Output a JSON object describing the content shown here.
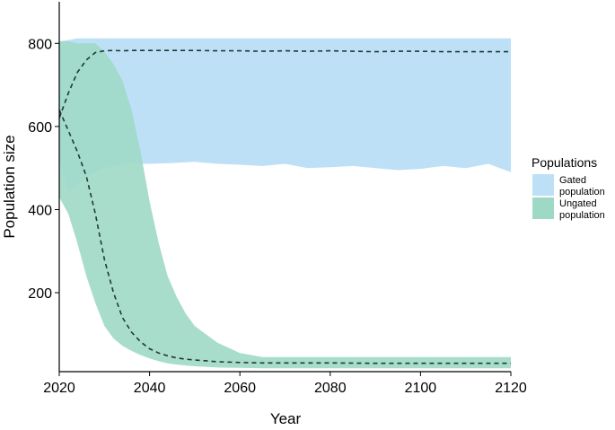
{
  "chart_data": {
    "type": "area",
    "title": "",
    "xlabel": "Year",
    "ylabel": "Population size",
    "xlim": [
      2020,
      2120
    ],
    "ylim": [
      10,
      900
    ],
    "x_ticks": [
      2020,
      2040,
      2060,
      2080,
      2100,
      2120
    ],
    "y_ticks": [
      200,
      400,
      600,
      800
    ],
    "grid": false,
    "legend": {
      "title": "Populations",
      "position": "right",
      "entries": [
        {
          "label_line1": "Gated",
          "label_line2": "population",
          "color": "#BDE0F6"
        },
        {
          "label_line1": "Ungated",
          "label_line2": "population",
          "color": "#9ED9C6"
        }
      ]
    },
    "series": [
      {
        "name": "Gated population",
        "color": "#BDE0F6",
        "x": [
          2020,
          2022,
          2024,
          2026,
          2028,
          2030,
          2032,
          2034,
          2036,
          2038,
          2040,
          2045,
          2050,
          2055,
          2060,
          2065,
          2070,
          2075,
          2080,
          2085,
          2090,
          2095,
          2100,
          2105,
          2110,
          2115,
          2120
        ],
        "lower": [
          520,
          440,
          460,
          480,
          490,
          500,
          505,
          510,
          512,
          510,
          510,
          512,
          515,
          510,
          508,
          505,
          510,
          500,
          502,
          505,
          500,
          495,
          498,
          505,
          500,
          510,
          490
        ],
        "upper": [
          805,
          808,
          812,
          812,
          812,
          812,
          812,
          812,
          812,
          812,
          812,
          812,
          812,
          812,
          812,
          812,
          812,
          812,
          812,
          812,
          812,
          812,
          812,
          812,
          812,
          812,
          812
        ],
        "mean": [
          620,
          680,
          730,
          760,
          778,
          782,
          783,
          782,
          783,
          783,
          783,
          783,
          783,
          782,
          782,
          781,
          782,
          781,
          782,
          781,
          780,
          781,
          781,
          780,
          780,
          780,
          780
        ]
      },
      {
        "name": "Ungated population",
        "color": "#9ED9C6",
        "x": [
          2020,
          2022,
          2024,
          2026,
          2028,
          2030,
          2032,
          2034,
          2036,
          2038,
          2040,
          2042,
          2044,
          2046,
          2048,
          2050,
          2055,
          2060,
          2065,
          2070,
          2080,
          2090,
          2100,
          2110,
          2120
        ],
        "lower": [
          430,
          390,
          320,
          240,
          175,
          120,
          90,
          72,
          60,
          50,
          42,
          35,
          30,
          27,
          25,
          23,
          20,
          19,
          18,
          18,
          18,
          18,
          18,
          18,
          18
        ],
        "upper": [
          805,
          805,
          800,
          800,
          800,
          780,
          750,
          710,
          640,
          540,
          420,
          320,
          240,
          190,
          150,
          120,
          80,
          55,
          45,
          45,
          45,
          45,
          45,
          45,
          45
        ],
        "mean": [
          640,
          590,
          540,
          480,
          390,
          280,
          200,
          140,
          105,
          82,
          65,
          55,
          48,
          43,
          40,
          38,
          34,
          32,
          31,
          31,
          31,
          30,
          30,
          30,
          30
        ]
      }
    ]
  }
}
